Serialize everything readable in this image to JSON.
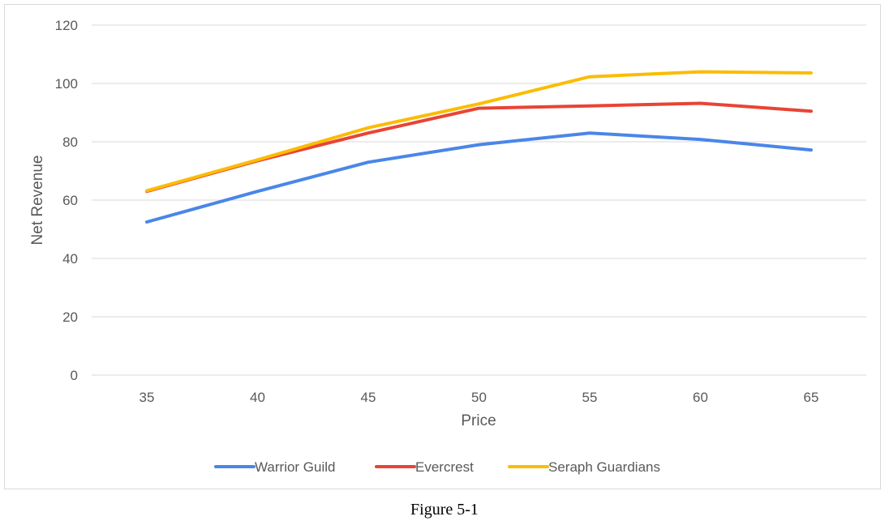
{
  "chart_data": {
    "type": "line",
    "x": [
      35,
      40,
      45,
      50,
      55,
      60,
      65
    ],
    "xlabel": "Price",
    "ylabel": "Net Revenue",
    "ylim": [
      0,
      120
    ],
    "yticks": [
      0,
      20,
      40,
      60,
      80,
      100,
      120
    ],
    "grid": true,
    "legend": "bottom",
    "series": [
      {
        "name": "Warrior Guild",
        "color": "#4a86e8",
        "values": [
          52.5,
          63,
          73,
          79,
          83,
          80.8,
          77.2
        ]
      },
      {
        "name": "Evercrest",
        "color": "#e84435",
        "values": [
          63,
          73.5,
          83,
          91.5,
          92.3,
          93.2,
          90.5
        ]
      },
      {
        "name": "Seraph Guardians",
        "color": "#fbbc04",
        "values": [
          63.2,
          73.8,
          84.8,
          93,
          102.3,
          104,
          103.6
        ]
      }
    ]
  },
  "caption": "Figure 5-1"
}
